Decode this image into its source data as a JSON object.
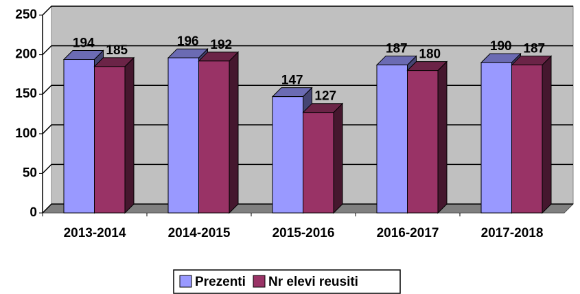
{
  "chart_data": {
    "type": "bar3d",
    "categories": [
      "2013-2014",
      "2014-2015",
      "2015-2016",
      "2016-2017",
      "2017-2018"
    ],
    "series": [
      {
        "name": "Prezenti",
        "color": "#9999ff",
        "values": [
          194,
          196,
          147,
          187,
          190
        ]
      },
      {
        "name": "Nr elevi reusiti",
        "color": "#993366",
        "values": [
          185,
          192,
          127,
          180,
          187
        ]
      }
    ],
    "ylim": [
      0,
      250
    ],
    "yticks": [
      0,
      50,
      100,
      150,
      200,
      250
    ],
    "grid": true,
    "legend": "bottom"
  }
}
